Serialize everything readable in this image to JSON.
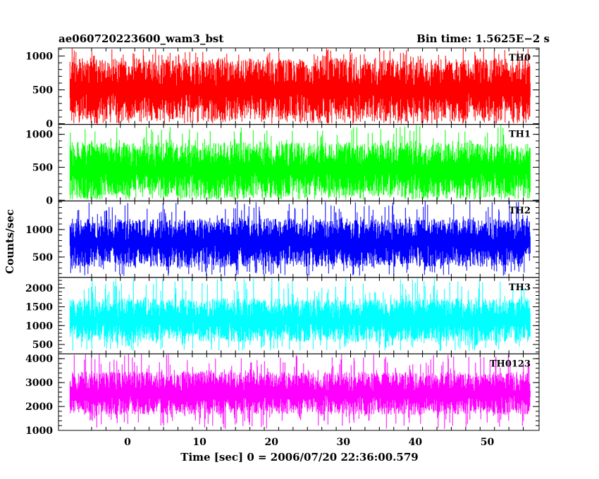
{
  "header": {
    "left_title": "ae060720223600_wam3_bst",
    "right_title": "Bin time: 1.5625E−2 s"
  },
  "chart_data": {
    "type": "line",
    "title": "ae060720223600_wam3_bst",
    "subtitle": "Bin time: 1.5625E−2 s",
    "xlabel": "Time [sec] 0 = 2006/07/20 22:36:00.579",
    "ylabel": "Counts/sec",
    "xlim": [
      -9.6,
      57.2
    ],
    "x_ticks": [
      0,
      10,
      20,
      30,
      40,
      50
    ],
    "x_range_data": [
      -8,
      56
    ],
    "bin_time": 0.015625,
    "grid": false,
    "legend": "none",
    "panels": [
      {
        "name": "TH0",
        "color": "#ff0000",
        "ylim": [
          -10,
          1120
        ],
        "y_ticks": [
          0,
          500,
          1000
        ],
        "typical_range": [
          40,
          960
        ],
        "peak_max": 1120,
        "dip_min": 0
      },
      {
        "name": "TH1",
        "color": "#00ff00",
        "ylim": [
          -10,
          1150
        ],
        "y_ticks": [
          0,
          500,
          1000
        ],
        "typical_range": [
          40,
          880
        ],
        "peak_max": 1150,
        "dip_min": 10
      },
      {
        "name": "TH2",
        "color": "#0000ff",
        "ylim": [
          130,
          1520
        ],
        "y_ticks": [
          500,
          1000
        ],
        "typical_range": [
          320,
          1200
        ],
        "peak_max": 1520,
        "dip_min": 160
      },
      {
        "name": "TH3",
        "color": "#00ffff",
        "ylim": [
          250,
          2280
        ],
        "y_ticks": [
          500,
          1000,
          1500,
          2000
        ],
        "typical_range": [
          560,
          1720
        ],
        "peak_max": 2280,
        "dip_min": 330
      },
      {
        "name": "TH0123",
        "color": "#ff00ff",
        "ylim": [
          1000,
          4200
        ],
        "y_ticks": [
          1000,
          2000,
          3000,
          4000
        ],
        "typical_range": [
          1650,
          3450
        ],
        "peak_max": 4200,
        "dip_min": 1050
      }
    ]
  }
}
